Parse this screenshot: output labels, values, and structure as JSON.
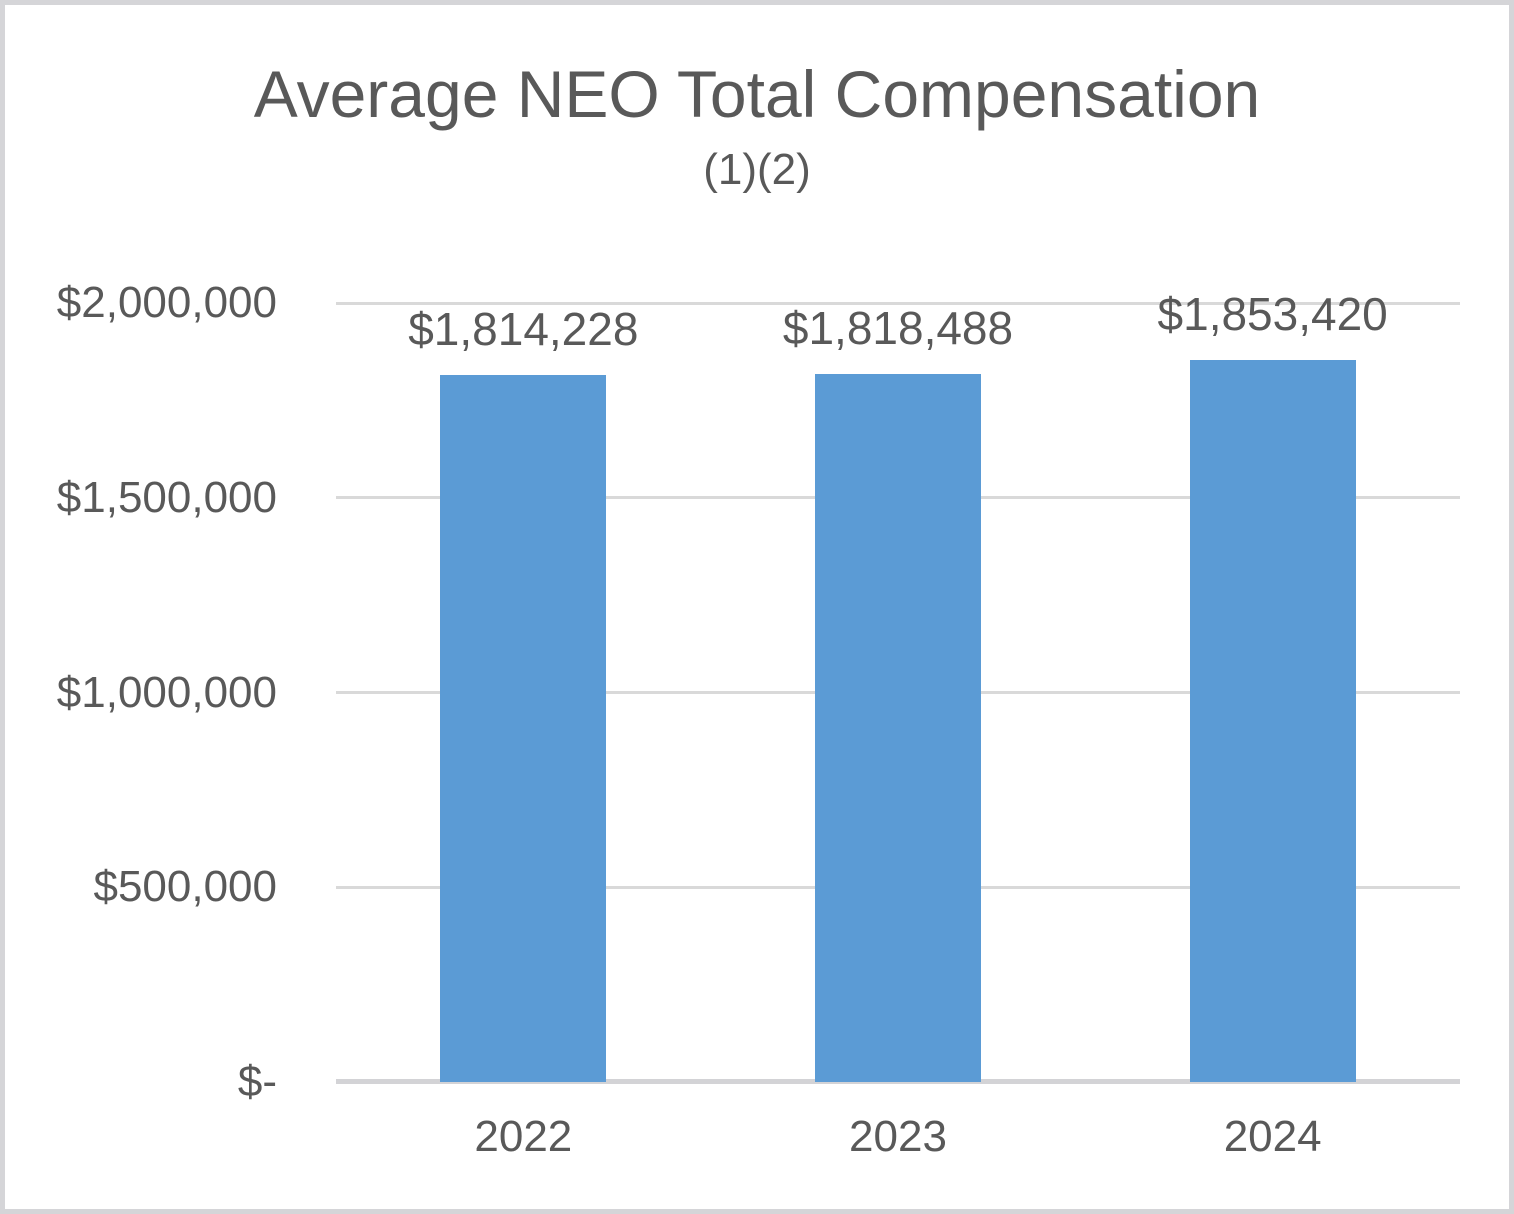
{
  "header": {
    "title": "Average NEO Total Compensation",
    "subtitle": "(1)(2)"
  },
  "chart_data": {
    "type": "bar",
    "title": "Average NEO Total Compensation",
    "subtitle": "(1)(2)",
    "categories": [
      "2022",
      "2023",
      "2024"
    ],
    "values": [
      1814228,
      1818488,
      1853420
    ],
    "data_labels": [
      "$1,814,228",
      "$1,818,488",
      "$1,853,420"
    ],
    "xlabel": "",
    "ylabel": "",
    "ylim": [
      0,
      2000000
    ],
    "y_ticks": [
      {
        "value": 2000000,
        "label": "$2,000,000"
      },
      {
        "value": 1500000,
        "label": "$1,500,000"
      },
      {
        "value": 1000000,
        "label": "$1,000,000"
      },
      {
        "value": 500000,
        "label": "$500,000"
      },
      {
        "value": 0,
        "label": "$-"
      }
    ],
    "grid": true,
    "legend": false,
    "colors": {
      "bar": "#5b9bd5",
      "text": "#595959",
      "gridline": "#d9d9d9",
      "axis_line": "#d3d3d6",
      "frame_border": "#d5d5d8"
    }
  }
}
